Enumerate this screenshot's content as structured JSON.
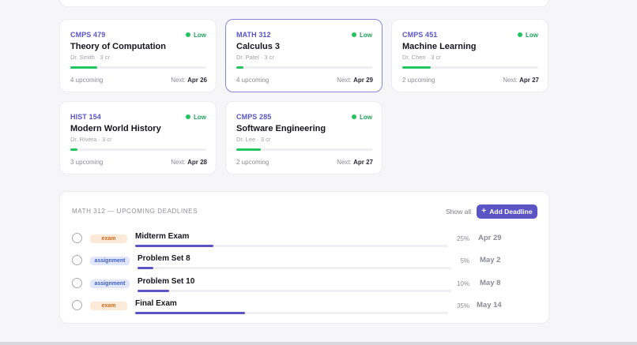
{
  "courses": [
    {
      "code": "CMPS 479",
      "risk": "Low",
      "name": "Theory of Computation",
      "meta": "Dr. Smith · 3 cr",
      "progress": 0.2,
      "upcoming": "4 upcoming",
      "next_label": "Next:",
      "next_date": "Apr 26"
    },
    {
      "code": "MATH 312",
      "risk": "Low",
      "name": "Calculus 3",
      "meta": "Dr. Patel · 3 cr",
      "progress": 0.05,
      "upcoming": "4 upcoming",
      "next_label": "Next:",
      "next_date": "Apr 29"
    },
    {
      "code": "CMPS 451",
      "risk": "Low",
      "name": "Machine Learning",
      "meta": "Dr. Chen · 3 cr",
      "progress": 0.21,
      "upcoming": "2 upcoming",
      "next_label": "Next:",
      "next_date": "Apr 27"
    },
    {
      "code": "HIST 154",
      "risk": "Low",
      "name": "Modern World History",
      "meta": "Dr. Rivera · 3 cr",
      "progress": 0.05,
      "upcoming": "3 upcoming",
      "next_label": "Next:",
      "next_date": "Apr 28"
    },
    {
      "code": "CMPS 285",
      "risk": "Low",
      "name": "Software Engineering",
      "meta": "Dr. Lee · 3 cr",
      "progress": 0.18,
      "upcoming": "2 upcoming",
      "next_label": "Next:",
      "next_date": "Apr 27"
    }
  ],
  "deadlines": {
    "title": "MATH 312 — Upcoming Deadlines",
    "show_all": "Show all",
    "add_label": "Add Deadline",
    "items": [
      {
        "tag": "exam",
        "name": "Midterm Exam",
        "progress": 0.25,
        "pct": "25%",
        "date": "Apr 29"
      },
      {
        "tag": "assignment",
        "name": "Problem Set 8",
        "progress": 0.05,
        "pct": "5%",
        "date": "May 2"
      },
      {
        "tag": "assignment",
        "name": "Problem Set 10",
        "progress": 0.1,
        "pct": "10%",
        "date": "May 8"
      },
      {
        "tag": "exam",
        "name": "Final Exam",
        "progress": 0.35,
        "pct": "35%",
        "date": "May 14"
      }
    ]
  },
  "colors": {
    "accent": "#5a54c4",
    "risk_low": "#22c55e",
    "exam_tag": "#d2691e",
    "assignment_tag": "#3f5ec5"
  },
  "icons": {
    "risk": "dot-icon",
    "add": "plus-icon",
    "check": "circle-checkbox-icon"
  }
}
